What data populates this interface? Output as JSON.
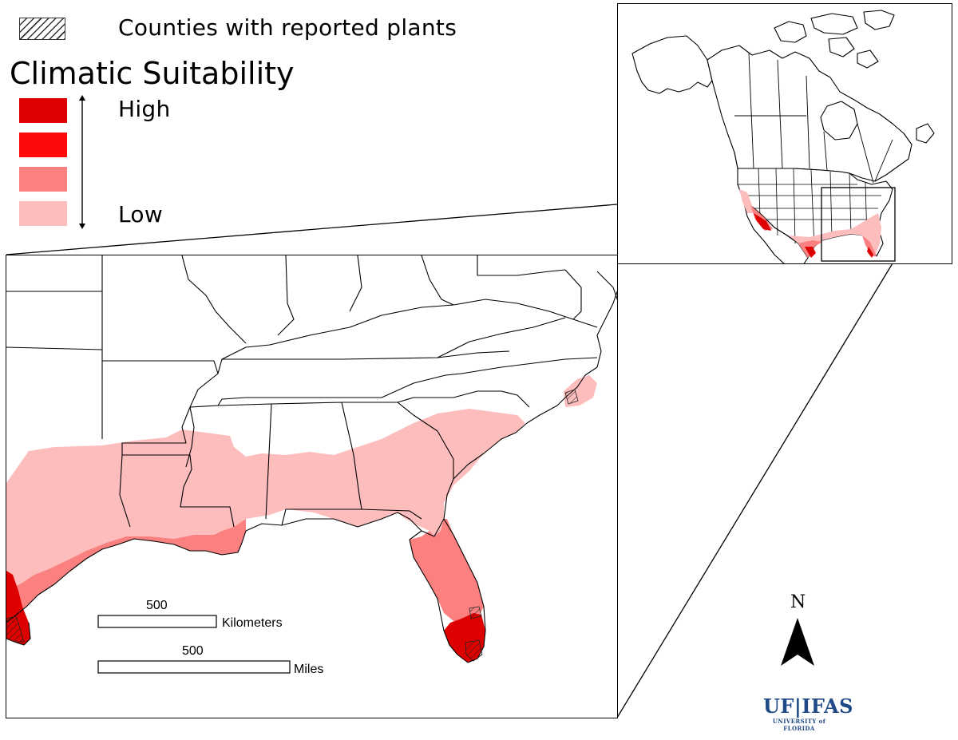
{
  "legend": {
    "hatch_label": "Counties with reported plants",
    "heading": "Climatic Suitability",
    "high_label": "High",
    "low_label": "Low",
    "classes": [
      {
        "level": "highest",
        "color": "#de0000"
      },
      {
        "level": "high",
        "color": "#ff0a0a"
      },
      {
        "level": "medium",
        "color": "#fb8080"
      },
      {
        "level": "low",
        "color": "#fdbdbd"
      }
    ]
  },
  "scale_bars": {
    "km_value": "500",
    "km_unit": "Kilometers",
    "mi_value": "500",
    "mi_unit": "Miles"
  },
  "north_arrow": {
    "label": "N"
  },
  "logo": {
    "top": "UF|IFAS",
    "bottom": "UNIVERSITY of FLORIDA"
  },
  "colors": {
    "highest": "#de0000",
    "high": "#ff0a0a",
    "medium": "#fb8080",
    "low": "#fdbdbd",
    "border": "#000000"
  }
}
